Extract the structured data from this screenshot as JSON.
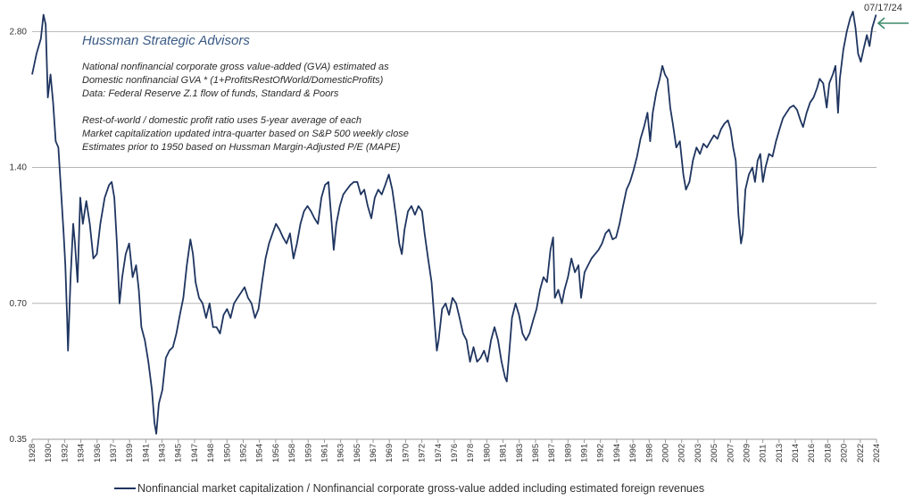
{
  "chart_data": {
    "type": "line",
    "brand": "Hussman Strategic Advisors",
    "notes": [
      "National nonfinancial corporate gross value-added (GVA) estimated as",
      "Domestic nonfinancial GVA * (1+ProfitsRestOfWorld/DomesticProfits)",
      "Data: Federal Reserve Z.1 flow of funds, Standard & Poors",
      "Rest-of-world / domestic profit ratio uses 5-year average of each",
      "Market capitalization updated intra-quarter based on S&P 500 weekly close",
      "Estimates prior to 1950 based on Hussman Margin-Adjusted P/E (MAPE)"
    ],
    "y_scale": "log",
    "ylim": [
      0.35,
      3.2
    ],
    "yticks": [
      0.35,
      0.7,
      1.4,
      2.8
    ],
    "ytick_labels": [
      "0.35",
      "0.70",
      "1.40",
      "2.80"
    ],
    "xlim": [
      1928.0,
      2024.6
    ],
    "xtick_labels": [
      "1928",
      "1930",
      "1932",
      "1934",
      "1936",
      "1937",
      "1939",
      "1941",
      "1943",
      "1945",
      "1947",
      "1948",
      "1950",
      "1952",
      "1954",
      "1956",
      "1958",
      "1959",
      "1961",
      "1963",
      "1965",
      "1967",
      "1969",
      "1970",
      "1972",
      "1974",
      "1976",
      "1978",
      "1980",
      "1981",
      "1983",
      "1985",
      "1987",
      "1989",
      "1991",
      "1992",
      "1994",
      "1996",
      "1998",
      "2000",
      "2002",
      "2003",
      "2005",
      "2007",
      "2009",
      "2011",
      "2013",
      "2014",
      "2016",
      "2018",
      "2020",
      "2022",
      "2024"
    ],
    "annotation": "07/17/24",
    "series": [
      {
        "name": "Nonfinancial market capitalization / Nonfinancial corporate gross-value added including estimated foreign revenues",
        "color": "#1f3560",
        "points": [
          [
            1928.0,
            2.25
          ],
          [
            1928.5,
            2.5
          ],
          [
            1929.0,
            2.7
          ],
          [
            1929.3,
            3.05
          ],
          [
            1929.55,
            2.9
          ],
          [
            1929.8,
            2.0
          ],
          [
            1930.1,
            2.25
          ],
          [
            1930.4,
            1.95
          ],
          [
            1930.7,
            1.6
          ],
          [
            1931.0,
            1.55
          ],
          [
            1931.3,
            1.25
          ],
          [
            1931.6,
            1.0
          ],
          [
            1931.8,
            0.85
          ],
          [
            1932.0,
            0.65
          ],
          [
            1932.1,
            0.55
          ],
          [
            1932.4,
            0.8
          ],
          [
            1932.7,
            1.05
          ],
          [
            1932.9,
            0.95
          ],
          [
            1933.2,
            0.78
          ],
          [
            1933.5,
            1.2
          ],
          [
            1933.8,
            1.05
          ],
          [
            1934.2,
            1.18
          ],
          [
            1934.6,
            1.05
          ],
          [
            1935.0,
            0.88
          ],
          [
            1935.4,
            0.9
          ],
          [
            1935.8,
            1.05
          ],
          [
            1936.3,
            1.2
          ],
          [
            1936.8,
            1.28
          ],
          [
            1937.1,
            1.3
          ],
          [
            1937.4,
            1.2
          ],
          [
            1937.7,
            0.95
          ],
          [
            1938.0,
            0.7
          ],
          [
            1938.3,
            0.8
          ],
          [
            1938.7,
            0.9
          ],
          [
            1939.1,
            0.95
          ],
          [
            1939.5,
            0.8
          ],
          [
            1939.9,
            0.85
          ],
          [
            1940.2,
            0.75
          ],
          [
            1940.5,
            0.62
          ],
          [
            1940.9,
            0.58
          ],
          [
            1941.3,
            0.52
          ],
          [
            1941.7,
            0.45
          ],
          [
            1942.0,
            0.38
          ],
          [
            1942.2,
            0.36
          ],
          [
            1942.5,
            0.42
          ],
          [
            1942.9,
            0.45
          ],
          [
            1943.3,
            0.53
          ],
          [
            1943.7,
            0.55
          ],
          [
            1944.1,
            0.56
          ],
          [
            1944.5,
            0.6
          ],
          [
            1944.9,
            0.66
          ],
          [
            1945.3,
            0.72
          ],
          [
            1945.7,
            0.85
          ],
          [
            1946.1,
            0.97
          ],
          [
            1946.4,
            0.9
          ],
          [
            1946.7,
            0.78
          ],
          [
            1947.1,
            0.72
          ],
          [
            1947.5,
            0.7
          ],
          [
            1947.9,
            0.65
          ],
          [
            1948.3,
            0.7
          ],
          [
            1948.7,
            0.62
          ],
          [
            1949.1,
            0.62
          ],
          [
            1949.5,
            0.6
          ],
          [
            1949.9,
            0.66
          ],
          [
            1950.3,
            0.68
          ],
          [
            1950.7,
            0.65
          ],
          [
            1951.1,
            0.7
          ],
          [
            1951.5,
            0.72
          ],
          [
            1951.9,
            0.74
          ],
          [
            1952.3,
            0.76
          ],
          [
            1952.7,
            0.72
          ],
          [
            1953.1,
            0.7
          ],
          [
            1953.5,
            0.65
          ],
          [
            1953.9,
            0.68
          ],
          [
            1954.3,
            0.78
          ],
          [
            1954.7,
            0.88
          ],
          [
            1955.1,
            0.95
          ],
          [
            1955.5,
            1.0
          ],
          [
            1955.9,
            1.05
          ],
          [
            1956.3,
            1.02
          ],
          [
            1956.7,
            0.98
          ],
          [
            1957.1,
            0.95
          ],
          [
            1957.5,
            1.0
          ],
          [
            1957.9,
            0.88
          ],
          [
            1958.3,
            0.95
          ],
          [
            1958.7,
            1.05
          ],
          [
            1959.1,
            1.12
          ],
          [
            1959.5,
            1.15
          ],
          [
            1959.9,
            1.12
          ],
          [
            1960.3,
            1.08
          ],
          [
            1960.7,
            1.05
          ],
          [
            1961.1,
            1.2
          ],
          [
            1961.5,
            1.28
          ],
          [
            1961.9,
            1.3
          ],
          [
            1962.2,
            1.1
          ],
          [
            1962.5,
            0.92
          ],
          [
            1962.8,
            1.05
          ],
          [
            1963.2,
            1.15
          ],
          [
            1963.6,
            1.22
          ],
          [
            1964.0,
            1.25
          ],
          [
            1964.4,
            1.28
          ],
          [
            1964.8,
            1.3
          ],
          [
            1965.2,
            1.3
          ],
          [
            1965.6,
            1.22
          ],
          [
            1966.0,
            1.25
          ],
          [
            1966.4,
            1.15
          ],
          [
            1966.8,
            1.08
          ],
          [
            1967.2,
            1.2
          ],
          [
            1967.6,
            1.25
          ],
          [
            1968.0,
            1.22
          ],
          [
            1968.4,
            1.28
          ],
          [
            1968.8,
            1.35
          ],
          [
            1969.2,
            1.25
          ],
          [
            1969.6,
            1.1
          ],
          [
            1970.0,
            0.95
          ],
          [
            1970.3,
            0.9
          ],
          [
            1970.6,
            1.02
          ],
          [
            1971.0,
            1.12
          ],
          [
            1971.4,
            1.15
          ],
          [
            1971.8,
            1.1
          ],
          [
            1972.2,
            1.15
          ],
          [
            1972.6,
            1.12
          ],
          [
            1972.9,
            1.0
          ],
          [
            1973.3,
            0.88
          ],
          [
            1973.7,
            0.78
          ],
          [
            1974.0,
            0.65
          ],
          [
            1974.3,
            0.55
          ],
          [
            1974.5,
            0.58
          ],
          [
            1974.9,
            0.68
          ],
          [
            1975.3,
            0.7
          ],
          [
            1975.7,
            0.66
          ],
          [
            1976.1,
            0.72
          ],
          [
            1976.5,
            0.7
          ],
          [
            1976.9,
            0.65
          ],
          [
            1977.3,
            0.6
          ],
          [
            1977.7,
            0.58
          ],
          [
            1978.1,
            0.52
          ],
          [
            1978.5,
            0.56
          ],
          [
            1978.9,
            0.52
          ],
          [
            1979.3,
            0.53
          ],
          [
            1979.7,
            0.55
          ],
          [
            1980.1,
            0.52
          ],
          [
            1980.5,
            0.58
          ],
          [
            1980.9,
            0.62
          ],
          [
            1981.3,
            0.58
          ],
          [
            1981.7,
            0.52
          ],
          [
            1982.1,
            0.48
          ],
          [
            1982.3,
            0.47
          ],
          [
            1982.6,
            0.55
          ],
          [
            1982.9,
            0.65
          ],
          [
            1983.3,
            0.7
          ],
          [
            1983.7,
            0.66
          ],
          [
            1984.1,
            0.6
          ],
          [
            1984.5,
            0.58
          ],
          [
            1984.9,
            0.6
          ],
          [
            1985.3,
            0.64
          ],
          [
            1985.7,
            0.68
          ],
          [
            1986.1,
            0.75
          ],
          [
            1986.5,
            0.8
          ],
          [
            1986.9,
            0.78
          ],
          [
            1987.3,
            0.92
          ],
          [
            1987.6,
            0.98
          ],
          [
            1987.8,
            0.72
          ],
          [
            1988.2,
            0.75
          ],
          [
            1988.6,
            0.7
          ],
          [
            1988.9,
            0.75
          ],
          [
            1989.3,
            0.8
          ],
          [
            1989.7,
            0.88
          ],
          [
            1990.1,
            0.82
          ],
          [
            1990.5,
            0.85
          ],
          [
            1990.8,
            0.72
          ],
          [
            1991.2,
            0.82
          ],
          [
            1991.6,
            0.85
          ],
          [
            1992.0,
            0.88
          ],
          [
            1992.4,
            0.9
          ],
          [
            1992.8,
            0.92
          ],
          [
            1993.2,
            0.95
          ],
          [
            1993.6,
            1.0
          ],
          [
            1994.0,
            1.02
          ],
          [
            1994.4,
            0.97
          ],
          [
            1994.8,
            0.98
          ],
          [
            1995.2,
            1.05
          ],
          [
            1995.6,
            1.15
          ],
          [
            1996.0,
            1.25
          ],
          [
            1996.4,
            1.3
          ],
          [
            1996.8,
            1.38
          ],
          [
            1997.2,
            1.48
          ],
          [
            1997.6,
            1.62
          ],
          [
            1998.0,
            1.72
          ],
          [
            1998.4,
            1.85
          ],
          [
            1998.7,
            1.6
          ],
          [
            1999.0,
            1.85
          ],
          [
            1999.4,
            2.05
          ],
          [
            1999.8,
            2.2
          ],
          [
            2000.1,
            2.35
          ],
          [
            2000.4,
            2.25
          ],
          [
            2000.7,
            2.2
          ],
          [
            2001.0,
            1.9
          ],
          [
            2001.3,
            1.75
          ],
          [
            2001.7,
            1.55
          ],
          [
            2002.1,
            1.6
          ],
          [
            2002.5,
            1.35
          ],
          [
            2002.8,
            1.25
          ],
          [
            2003.2,
            1.3
          ],
          [
            2003.6,
            1.45
          ],
          [
            2004.0,
            1.55
          ],
          [
            2004.4,
            1.5
          ],
          [
            2004.8,
            1.58
          ],
          [
            2005.2,
            1.55
          ],
          [
            2005.6,
            1.6
          ],
          [
            2006.0,
            1.65
          ],
          [
            2006.4,
            1.62
          ],
          [
            2006.8,
            1.7
          ],
          [
            2007.2,
            1.75
          ],
          [
            2007.6,
            1.78
          ],
          [
            2007.9,
            1.7
          ],
          [
            2008.2,
            1.55
          ],
          [
            2008.5,
            1.45
          ],
          [
            2008.8,
            1.1
          ],
          [
            2009.1,
            0.95
          ],
          [
            2009.3,
            1.0
          ],
          [
            2009.6,
            1.25
          ],
          [
            2010.0,
            1.35
          ],
          [
            2010.4,
            1.4
          ],
          [
            2010.7,
            1.3
          ],
          [
            2011.0,
            1.45
          ],
          [
            2011.3,
            1.5
          ],
          [
            2011.6,
            1.3
          ],
          [
            2011.9,
            1.4
          ],
          [
            2012.3,
            1.5
          ],
          [
            2012.7,
            1.48
          ],
          [
            2013.1,
            1.6
          ],
          [
            2013.5,
            1.7
          ],
          [
            2013.9,
            1.8
          ],
          [
            2014.3,
            1.85
          ],
          [
            2014.7,
            1.9
          ],
          [
            2015.1,
            1.92
          ],
          [
            2015.5,
            1.88
          ],
          [
            2015.9,
            1.78
          ],
          [
            2016.2,
            1.72
          ],
          [
            2016.6,
            1.85
          ],
          [
            2017.0,
            1.95
          ],
          [
            2017.4,
            2.0
          ],
          [
            2017.8,
            2.1
          ],
          [
            2018.1,
            2.2
          ],
          [
            2018.5,
            2.15
          ],
          [
            2018.9,
            1.9
          ],
          [
            2019.2,
            2.15
          ],
          [
            2019.6,
            2.25
          ],
          [
            2019.9,
            2.35
          ],
          [
            2020.2,
            1.85
          ],
          [
            2020.4,
            2.2
          ],
          [
            2020.8,
            2.55
          ],
          [
            2021.2,
            2.8
          ],
          [
            2021.6,
            3.0
          ],
          [
            2021.9,
            3.1
          ],
          [
            2022.2,
            2.85
          ],
          [
            2022.5,
            2.5
          ],
          [
            2022.8,
            2.4
          ],
          [
            2023.1,
            2.55
          ],
          [
            2023.5,
            2.75
          ],
          [
            2023.8,
            2.6
          ],
          [
            2024.1,
            2.85
          ],
          [
            2024.55,
            3.05
          ]
        ]
      }
    ]
  }
}
